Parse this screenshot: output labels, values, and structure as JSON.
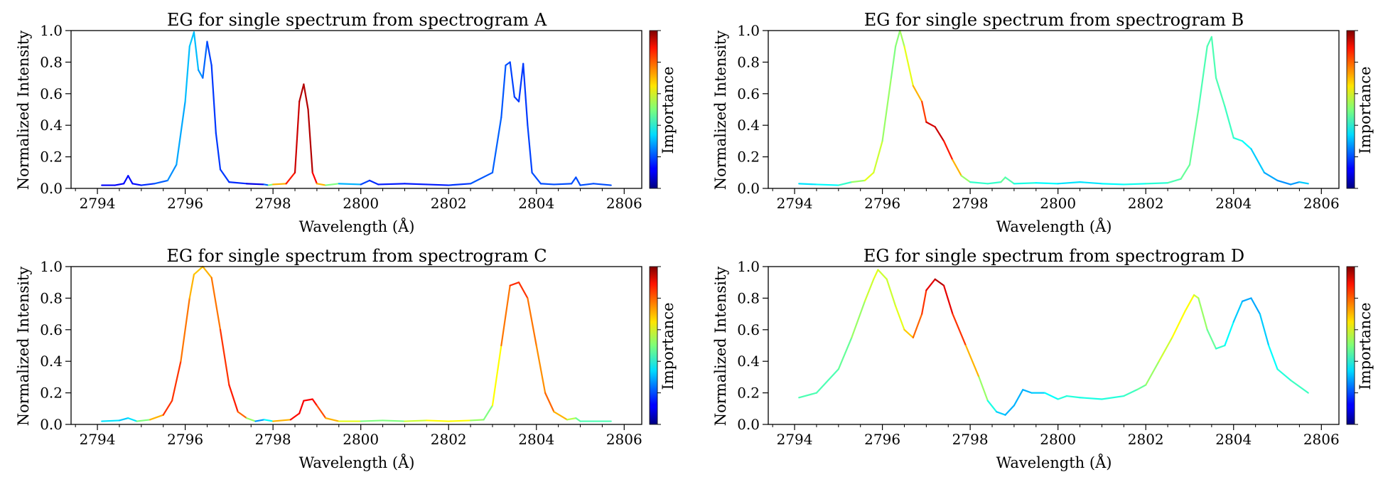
{
  "colorbar_label": "Importance",
  "panels": [
    {
      "title": "EG for single spectrum from spectrogram A",
      "xlabel": "Wavelength (Å)",
      "ylabel": "Normalized Intensity"
    },
    {
      "title": "EG for single spectrum from spectrogram B",
      "xlabel": "Wavelength (Å)",
      "ylabel": "Normalized Intensity"
    },
    {
      "title": "EG for single spectrum from spectrogram C",
      "xlabel": "Wavelength (Å)",
      "ylabel": "Normalized Intensity"
    },
    {
      "title": "EG for single spectrum from spectrogram D",
      "xlabel": "Wavelength (Å)",
      "ylabel": "Normalized Intensity"
    }
  ],
  "chart_data": [
    {
      "type": "line",
      "title": "EG for single spectrum from spectrogram A",
      "xlabel": "Wavelength (Å)",
      "ylabel": "Normalized Intensity",
      "xlim": [
        2793.4,
        2806.4
      ],
      "ylim": [
        0,
        1
      ],
      "xticks": [
        2794,
        2796,
        2798,
        2800,
        2802,
        2804,
        2806
      ],
      "yticks": [
        0.0,
        0.2,
        0.4,
        0.6,
        0.8,
        1.0
      ],
      "colormap": "jet",
      "colorbar_label": "Importance",
      "x": [
        2794.1,
        2794.4,
        2794.6,
        2794.7,
        2794.8,
        2795.0,
        2795.3,
        2795.6,
        2795.8,
        2796.0,
        2796.1,
        2796.2,
        2796.3,
        2796.4,
        2796.5,
        2796.6,
        2796.7,
        2796.8,
        2797.0,
        2797.4,
        2797.8,
        2797.9,
        2798.0,
        2798.3,
        2798.5,
        2798.6,
        2798.7,
        2798.8,
        2798.9,
        2799.0,
        2799.2,
        2799.5,
        2800.0,
        2800.2,
        2800.4,
        2801.0,
        2801.5,
        2802.0,
        2802.5,
        2803.0,
        2803.2,
        2803.3,
        2803.4,
        2803.5,
        2803.6,
        2803.7,
        2803.8,
        2803.9,
        2804.1,
        2804.4,
        2804.8,
        2804.9,
        2805.0,
        2805.3,
        2805.7
      ],
      "y": [
        0.02,
        0.02,
        0.03,
        0.08,
        0.03,
        0.02,
        0.03,
        0.05,
        0.15,
        0.55,
        0.9,
        0.99,
        0.75,
        0.7,
        0.93,
        0.78,
        0.35,
        0.12,
        0.04,
        0.03,
        0.025,
        0.02,
        0.025,
        0.03,
        0.1,
        0.55,
        0.66,
        0.5,
        0.1,
        0.03,
        0.02,
        0.03,
        0.025,
        0.05,
        0.025,
        0.03,
        0.025,
        0.02,
        0.03,
        0.1,
        0.45,
        0.78,
        0.8,
        0.58,
        0.55,
        0.79,
        0.4,
        0.1,
        0.03,
        0.025,
        0.03,
        0.07,
        0.02,
        0.03,
        0.02
      ],
      "importance": [
        0.12,
        0.12,
        0.12,
        0.15,
        0.12,
        0.15,
        0.18,
        0.25,
        0.28,
        0.3,
        0.32,
        0.32,
        0.3,
        0.25,
        0.2,
        0.18,
        0.18,
        0.18,
        0.18,
        0.15,
        0.05,
        0.4,
        0.6,
        0.8,
        0.9,
        0.95,
        0.95,
        0.95,
        0.95,
        0.8,
        0.6,
        0.4,
        0.2,
        0.18,
        0.15,
        0.15,
        0.15,
        0.15,
        0.2,
        0.22,
        0.22,
        0.2,
        0.2,
        0.18,
        0.18,
        0.18,
        0.18,
        0.2,
        0.2,
        0.2,
        0.2,
        0.2,
        0.2,
        0.2,
        0.2
      ]
    },
    {
      "type": "line",
      "title": "EG for single spectrum from spectrogram B",
      "xlabel": "Wavelength (Å)",
      "ylabel": "Normalized Intensity",
      "xlim": [
        2793.4,
        2806.4
      ],
      "ylim": [
        0,
        1
      ],
      "xticks": [
        2794,
        2796,
        2798,
        2800,
        2802,
        2804,
        2806
      ],
      "yticks": [
        0.0,
        0.2,
        0.4,
        0.6,
        0.8,
        1.0
      ],
      "colormap": "jet",
      "colorbar_label": "Importance",
      "x": [
        2794.1,
        2794.5,
        2795.0,
        2795.3,
        2795.6,
        2795.8,
        2796.0,
        2796.2,
        2796.3,
        2796.4,
        2796.5,
        2796.7,
        2796.9,
        2797.0,
        2797.2,
        2797.4,
        2797.6,
        2797.8,
        2798.0,
        2798.4,
        2798.7,
        2798.8,
        2799.0,
        2799.5,
        2800.0,
        2800.5,
        2801.0,
        2801.5,
        2802.0,
        2802.5,
        2802.8,
        2803.0,
        2803.2,
        2803.4,
        2803.5,
        2803.6,
        2803.8,
        2804.0,
        2804.2,
        2804.4,
        2804.7,
        2805.0,
        2805.3,
        2805.5,
        2805.7
      ],
      "y": [
        0.03,
        0.025,
        0.02,
        0.04,
        0.05,
        0.1,
        0.3,
        0.7,
        0.9,
        1.0,
        0.9,
        0.65,
        0.55,
        0.42,
        0.39,
        0.3,
        0.18,
        0.08,
        0.04,
        0.03,
        0.04,
        0.07,
        0.03,
        0.035,
        0.03,
        0.04,
        0.03,
        0.025,
        0.03,
        0.035,
        0.06,
        0.15,
        0.5,
        0.9,
        0.96,
        0.7,
        0.52,
        0.32,
        0.3,
        0.25,
        0.1,
        0.05,
        0.025,
        0.04,
        0.03
      ],
      "importance": [
        0.35,
        0.35,
        0.4,
        0.45,
        0.6,
        0.6,
        0.55,
        0.5,
        0.5,
        0.52,
        0.55,
        0.65,
        0.75,
        0.88,
        0.95,
        0.9,
        0.8,
        0.6,
        0.45,
        0.4,
        0.45,
        0.5,
        0.4,
        0.4,
        0.35,
        0.35,
        0.35,
        0.4,
        0.38,
        0.45,
        0.45,
        0.5,
        0.45,
        0.45,
        0.45,
        0.45,
        0.45,
        0.42,
        0.4,
        0.35,
        0.3,
        0.28,
        0.25,
        0.3,
        0.35
      ]
    },
    {
      "type": "line",
      "title": "EG for single spectrum from spectrogram C",
      "xlabel": "Wavelength (Å)",
      "ylabel": "Normalized Intensity",
      "xlim": [
        2793.4,
        2806.4
      ],
      "ylim": [
        0,
        1
      ],
      "xticks": [
        2794,
        2796,
        2798,
        2800,
        2802,
        2804,
        2806
      ],
      "yticks": [
        0.0,
        0.2,
        0.4,
        0.6,
        0.8,
        1.0
      ],
      "colormap": "jet",
      "colorbar_label": "Importance",
      "x": [
        2794.1,
        2794.5,
        2794.7,
        2794.9,
        2795.2,
        2795.5,
        2795.7,
        2795.9,
        2796.1,
        2796.2,
        2796.4,
        2796.6,
        2796.8,
        2797.0,
        2797.2,
        2797.4,
        2797.6,
        2797.8,
        2798.0,
        2798.4,
        2798.6,
        2798.7,
        2798.9,
        2799.0,
        2799.2,
        2799.5,
        2800.0,
        2800.5,
        2801.0,
        2801.5,
        2802.0,
        2802.5,
        2802.8,
        2803.0,
        2803.2,
        2803.4,
        2803.6,
        2803.8,
        2804.0,
        2804.2,
        2804.4,
        2804.7,
        2804.9,
        2805.0,
        2805.3,
        2805.7
      ],
      "y": [
        0.02,
        0.025,
        0.04,
        0.02,
        0.03,
        0.06,
        0.15,
        0.4,
        0.8,
        0.95,
        1.0,
        0.93,
        0.6,
        0.25,
        0.08,
        0.04,
        0.02,
        0.03,
        0.02,
        0.03,
        0.07,
        0.15,
        0.16,
        0.12,
        0.04,
        0.02,
        0.02,
        0.025,
        0.02,
        0.025,
        0.02,
        0.025,
        0.03,
        0.12,
        0.5,
        0.88,
        0.9,
        0.8,
        0.5,
        0.2,
        0.08,
        0.03,
        0.04,
        0.02,
        0.02,
        0.02
      ],
      "importance": [
        0.35,
        0.35,
        0.3,
        0.4,
        0.6,
        0.8,
        0.85,
        0.8,
        0.72,
        0.68,
        0.68,
        0.72,
        0.8,
        0.85,
        0.85,
        0.7,
        0.35,
        0.2,
        0.55,
        0.85,
        0.88,
        0.88,
        0.88,
        0.85,
        0.75,
        0.65,
        0.55,
        0.45,
        0.55,
        0.6,
        0.65,
        0.6,
        0.45,
        0.55,
        0.7,
        0.82,
        0.85,
        0.8,
        0.72,
        0.75,
        0.8,
        0.6,
        0.5,
        0.45,
        0.45,
        0.45
      ]
    },
    {
      "type": "line",
      "title": "EG for single spectrum from spectrogram D",
      "xlabel": "Wavelength (Å)",
      "ylabel": "Normalized Intensity",
      "xlim": [
        2793.4,
        2806.4
      ],
      "ylim": [
        0,
        1
      ],
      "xticks": [
        2794,
        2796,
        2798,
        2800,
        2802,
        2804,
        2806
      ],
      "yticks": [
        0.0,
        0.2,
        0.4,
        0.6,
        0.8,
        1.0
      ],
      "colormap": "jet",
      "colorbar_label": "Importance",
      "x": [
        2794.1,
        2794.5,
        2795.0,
        2795.3,
        2795.6,
        2795.8,
        2795.9,
        2796.1,
        2796.3,
        2796.5,
        2796.7,
        2796.9,
        2797.0,
        2797.2,
        2797.4,
        2797.6,
        2797.9,
        2798.2,
        2798.4,
        2798.6,
        2798.8,
        2799.0,
        2799.2,
        2799.4,
        2799.7,
        2800.0,
        2800.2,
        2800.5,
        2801.0,
        2801.5,
        2801.8,
        2802.0,
        2802.3,
        2802.6,
        2802.9,
        2803.1,
        2803.2,
        2803.4,
        2803.6,
        2803.8,
        2804.0,
        2804.2,
        2804.4,
        2804.6,
        2804.8,
        2805.0,
        2805.3,
        2805.7
      ],
      "y": [
        0.17,
        0.2,
        0.35,
        0.55,
        0.78,
        0.92,
        0.98,
        0.92,
        0.75,
        0.6,
        0.55,
        0.7,
        0.85,
        0.92,
        0.88,
        0.7,
        0.5,
        0.3,
        0.15,
        0.08,
        0.06,
        0.12,
        0.22,
        0.2,
        0.2,
        0.16,
        0.18,
        0.17,
        0.16,
        0.18,
        0.22,
        0.25,
        0.4,
        0.55,
        0.72,
        0.82,
        0.8,
        0.6,
        0.48,
        0.5,
        0.65,
        0.78,
        0.8,
        0.7,
        0.5,
        0.35,
        0.28,
        0.2
      ],
      "importance": [
        0.45,
        0.45,
        0.45,
        0.5,
        0.55,
        0.6,
        0.6,
        0.55,
        0.6,
        0.6,
        0.75,
        0.8,
        0.85,
        0.95,
        0.95,
        0.85,
        0.8,
        0.6,
        0.45,
        0.35,
        0.3,
        0.3,
        0.3,
        0.3,
        0.35,
        0.4,
        0.42,
        0.4,
        0.4,
        0.42,
        0.45,
        0.5,
        0.55,
        0.6,
        0.65,
        0.6,
        0.55,
        0.5,
        0.45,
        0.4,
        0.35,
        0.3,
        0.28,
        0.3,
        0.35,
        0.4,
        0.42,
        0.45
      ]
    }
  ]
}
